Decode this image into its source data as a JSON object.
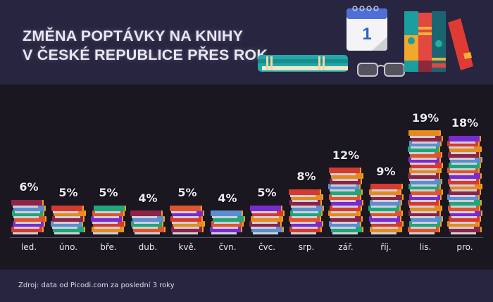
{
  "header": {
    "title_line1": "ZMĚNA POPTÁVKY NA KNIHY",
    "title_line2": "V ČESKÉ REPUBLICE PŘES ROK",
    "calendar_day": "1"
  },
  "footer": {
    "source": "Zdroj: data od Picodi.com za poslední 3 roky"
  },
  "chart_data": {
    "type": "bar",
    "title": "ZMĚNA POPTÁVKY NA KNIHY V ČESKÉ REPUBLICE PŘES ROK",
    "xlabel": "",
    "ylabel": "",
    "categories": [
      "led.",
      "úno.",
      "bře.",
      "dub.",
      "kvě.",
      "čvn.",
      "čvc.",
      "srp.",
      "zář.",
      "říj.",
      "lis.",
      "pro."
    ],
    "values": [
      6,
      5,
      5,
      4,
      5,
      4,
      5,
      8,
      12,
      9,
      19,
      18
    ],
    "labels": [
      "6%",
      "5%",
      "5%",
      "4%",
      "5%",
      "4%",
      "5%",
      "8%",
      "12%",
      "9%",
      "19%",
      "18%"
    ],
    "unit": "%",
    "bar_style": "stacked book icons",
    "grid": false,
    "legend": "none"
  },
  "colors": {
    "header_bg": "#282541",
    "chart_bg": "#1a1720",
    "text": "#e8e6f4",
    "books": [
      "#d63a2f",
      "#8e2348",
      "#1fa67a",
      "#7b2ad0",
      "#e58a1f",
      "#5b8ed0",
      "#e0542c"
    ]
  }
}
